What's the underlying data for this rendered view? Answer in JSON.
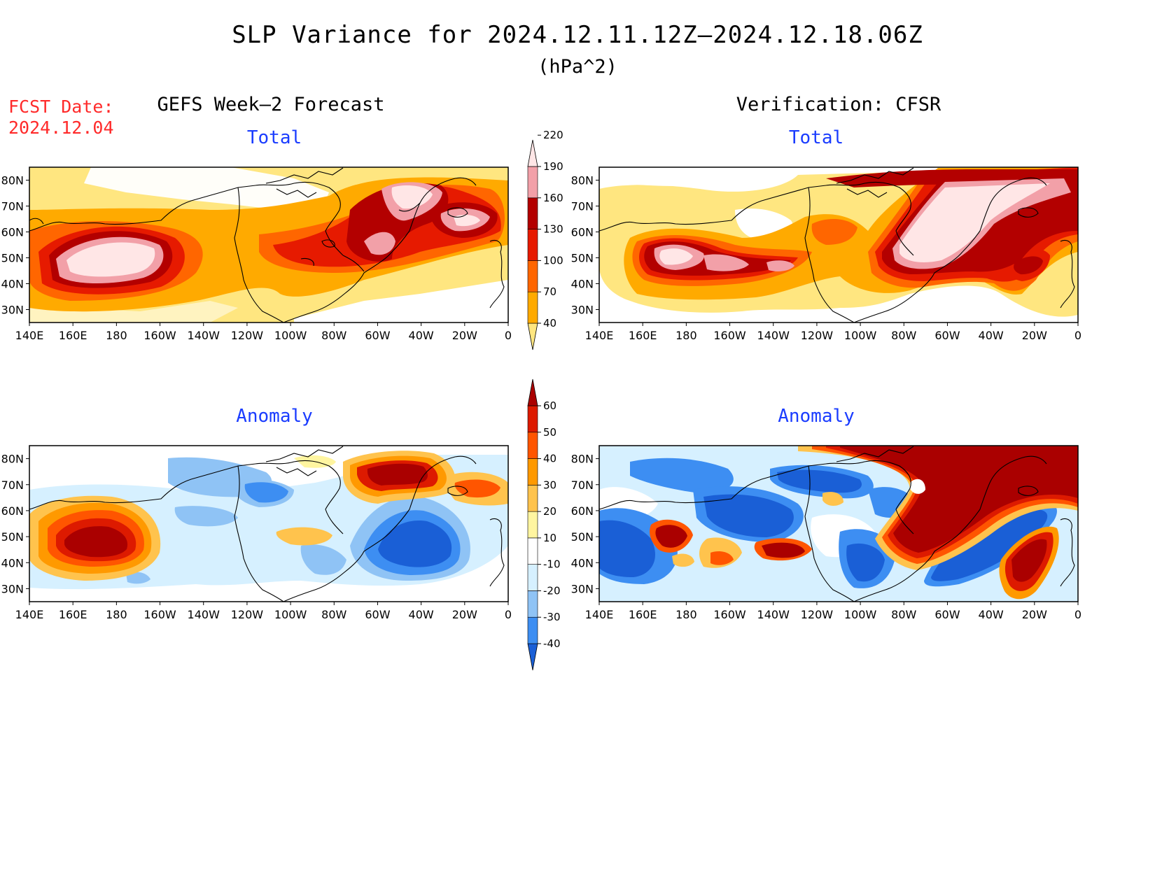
{
  "header": {
    "title": "SLP Variance for 2024.12.11.12Z—2024.12.18.06Z",
    "units": "(hPa^2)",
    "fcst_label": "FCST Date:",
    "fcst_date": "2024.12.04"
  },
  "columns": {
    "left": "GEFS Week—2 Forecast",
    "right": "Verification: CFSR"
  },
  "panels": {
    "top_left": "Total",
    "top_right": "Total",
    "bottom_left": "Anomaly",
    "bottom_right": "Anomaly"
  },
  "axes": {
    "lon_labels": [
      "140E",
      "160E",
      "180",
      "160W",
      "140W",
      "120W",
      "100W",
      "80W",
      "60W",
      "40W",
      "20W",
      "0"
    ],
    "lat_labels": [
      "80N",
      "70N",
      "60N",
      "50N",
      "40N",
      "30N"
    ]
  },
  "colorbar_total": {
    "levels": [
      "40",
      "70",
      "100",
      "130",
      "160",
      "190",
      "220"
    ],
    "colors": [
      "#ffe680",
      "#ffaa00",
      "#ff6600",
      "#e61a00",
      "#b30000",
      "#f2a0a8",
      "#ffe6e6"
    ]
  },
  "colorbar_anomaly": {
    "levels": [
      "-40",
      "-30",
      "-20",
      "-10",
      "10",
      "20",
      "30",
      "40",
      "50",
      "60"
    ],
    "colors": [
      "#1a5fd6",
      "#3d8ef2",
      "#8fc3f5",
      "#d6f0ff",
      "#ffffff",
      "#fff5a0",
      "#ffc34d",
      "#ff9900",
      "#ff5500",
      "#dd1a00",
      "#aa0000"
    ]
  }
}
